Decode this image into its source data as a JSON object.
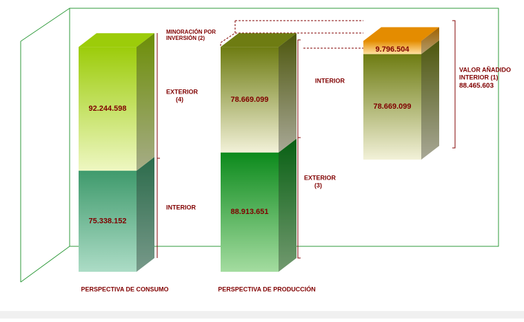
{
  "chart_data": {
    "type": "stacked-3d-bar",
    "columns": [
      {
        "label": "PERSPECTIVA DE CONSUMO",
        "values": [
          75338152,
          92244598
        ],
        "value_labels": [
          "75.338.152",
          "92.244.598"
        ],
        "colors": [
          [
            "#3f9a6c",
            "#acdcc6"
          ],
          [
            "#9ccc0a",
            "#eef7c2"
          ]
        ]
      },
      {
        "label": "PERSPECTIVA DE PRODUCCIÓN",
        "values": [
          88913651,
          78669099
        ],
        "value_labels": [
          "88.913.651",
          "78.669.099"
        ],
        "colors": [
          [
            "#0c8a1c",
            "#a4dca0"
          ],
          [
            "#6e7c12",
            "#f2f1d8"
          ]
        ]
      },
      {
        "values": [
          78669099,
          9796504
        ],
        "value_labels": [
          "78.669.099",
          "9.796.504"
        ],
        "colors": [
          [
            "#6e7c12",
            "#f2f1d8"
          ],
          [
            "#e48c00",
            "#ffe0a0"
          ]
        ],
        "total": 88465603,
        "total_label": "88.465.603"
      }
    ],
    "annotations": [
      {
        "lines": [
          "MINORACIÓN POR",
          "INVERSIÓN (2)"
        ]
      },
      {
        "lines": [
          "EXTERIOR",
          "(4)"
        ]
      },
      {
        "lines": [
          "INTERIOR"
        ]
      },
      {
        "lines": [
          "INTERIOR"
        ]
      },
      {
        "lines": [
          "EXTERIOR",
          "(3)"
        ]
      },
      {
        "lines": [
          "VALOR AÑADIDO",
          "INTERIOR (1)"
        ]
      }
    ]
  }
}
